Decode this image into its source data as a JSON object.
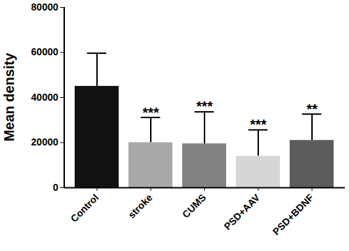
{
  "chart_data": {
    "type": "bar",
    "y_label": "Mean density",
    "categories": [
      "Control",
      "stroke",
      "CUMS",
      "PSD+AAV",
      "PSD+BDNF"
    ],
    "values": [
      45000,
      20000,
      19500,
      14000,
      21000
    ],
    "errors": [
      14500,
      11000,
      14000,
      11500,
      11500
    ],
    "colors": [
      "#111111",
      "#a8a8a8",
      "#828282",
      "#d6d6d6",
      "#5c5c5c"
    ],
    "annotations": [
      {
        "category": "stroke",
        "text": "***"
      },
      {
        "category": "CUMS",
        "text": "***"
      },
      {
        "category": "PSD+AAV",
        "text": "***"
      },
      {
        "category": "PSD+BDNF",
        "text": "**"
      }
    ],
    "ylim": [
      0,
      80000
    ],
    "yticks": [
      0,
      20000,
      40000,
      60000,
      80000
    ],
    "grid": false
  }
}
